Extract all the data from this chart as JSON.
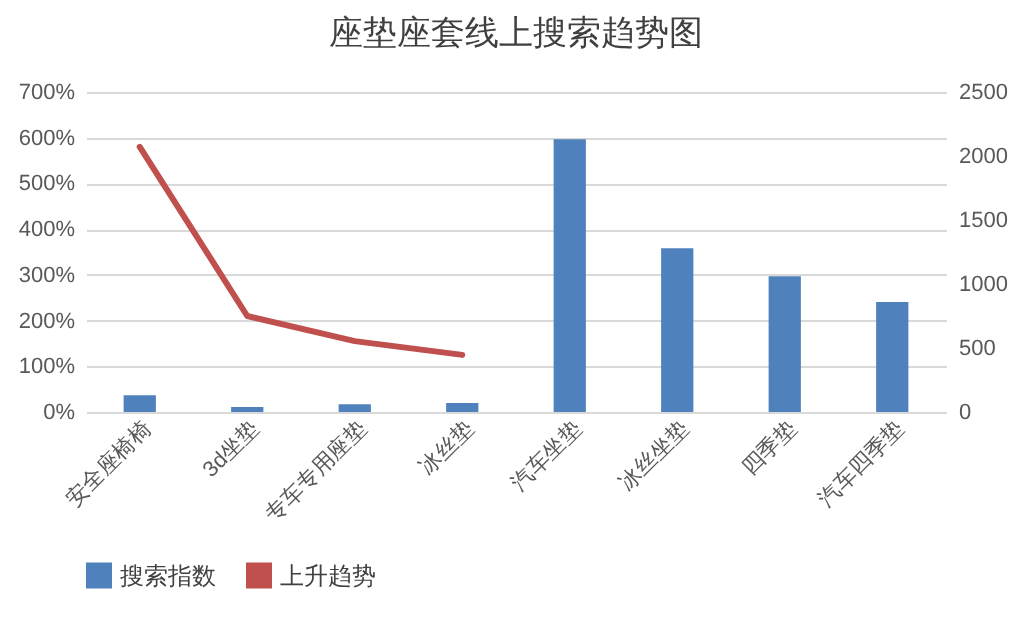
{
  "chart_data": {
    "type": "bar",
    "title": "座垫座套线上搜索趋势图",
    "categories": [
      "安全座椅椅",
      "3d坐垫",
      "专车专用座垫",
      "冰丝垫",
      "汽车坐垫",
      "冰丝坐垫",
      "四季垫",
      "汽车四季垫"
    ],
    "series": [
      {
        "name": "搜索指数",
        "axis": "y2",
        "color": "#4f81bd",
        "values": [
          130,
          40,
          60,
          70,
          2130,
          1280,
          1060,
          860
        ]
      },
      {
        "name": "上升趋势",
        "type": "line",
        "axis": "y",
        "color": "#c0504d",
        "values": [
          580,
          210,
          155,
          125,
          null,
          null,
          null,
          null
        ]
      }
    ],
    "ylim": [
      0,
      700
    ],
    "yticks": [
      {
        "value": 0,
        "label": "0%"
      },
      {
        "value": 100,
        "label": "100%"
      },
      {
        "value": 200,
        "label": "200%"
      },
      {
        "value": 300,
        "label": "300%"
      },
      {
        "value": 400,
        "label": "400%"
      },
      {
        "value": 500,
        "label": "500%"
      },
      {
        "value": 600,
        "label": "600%"
      },
      {
        "value": 700,
        "label": "700%"
      }
    ],
    "y2lim": [
      0,
      2500
    ],
    "y2ticks": [
      0,
      500,
      1000,
      1500,
      2000,
      2500
    ],
    "grid": "y",
    "legend": "bottom"
  }
}
